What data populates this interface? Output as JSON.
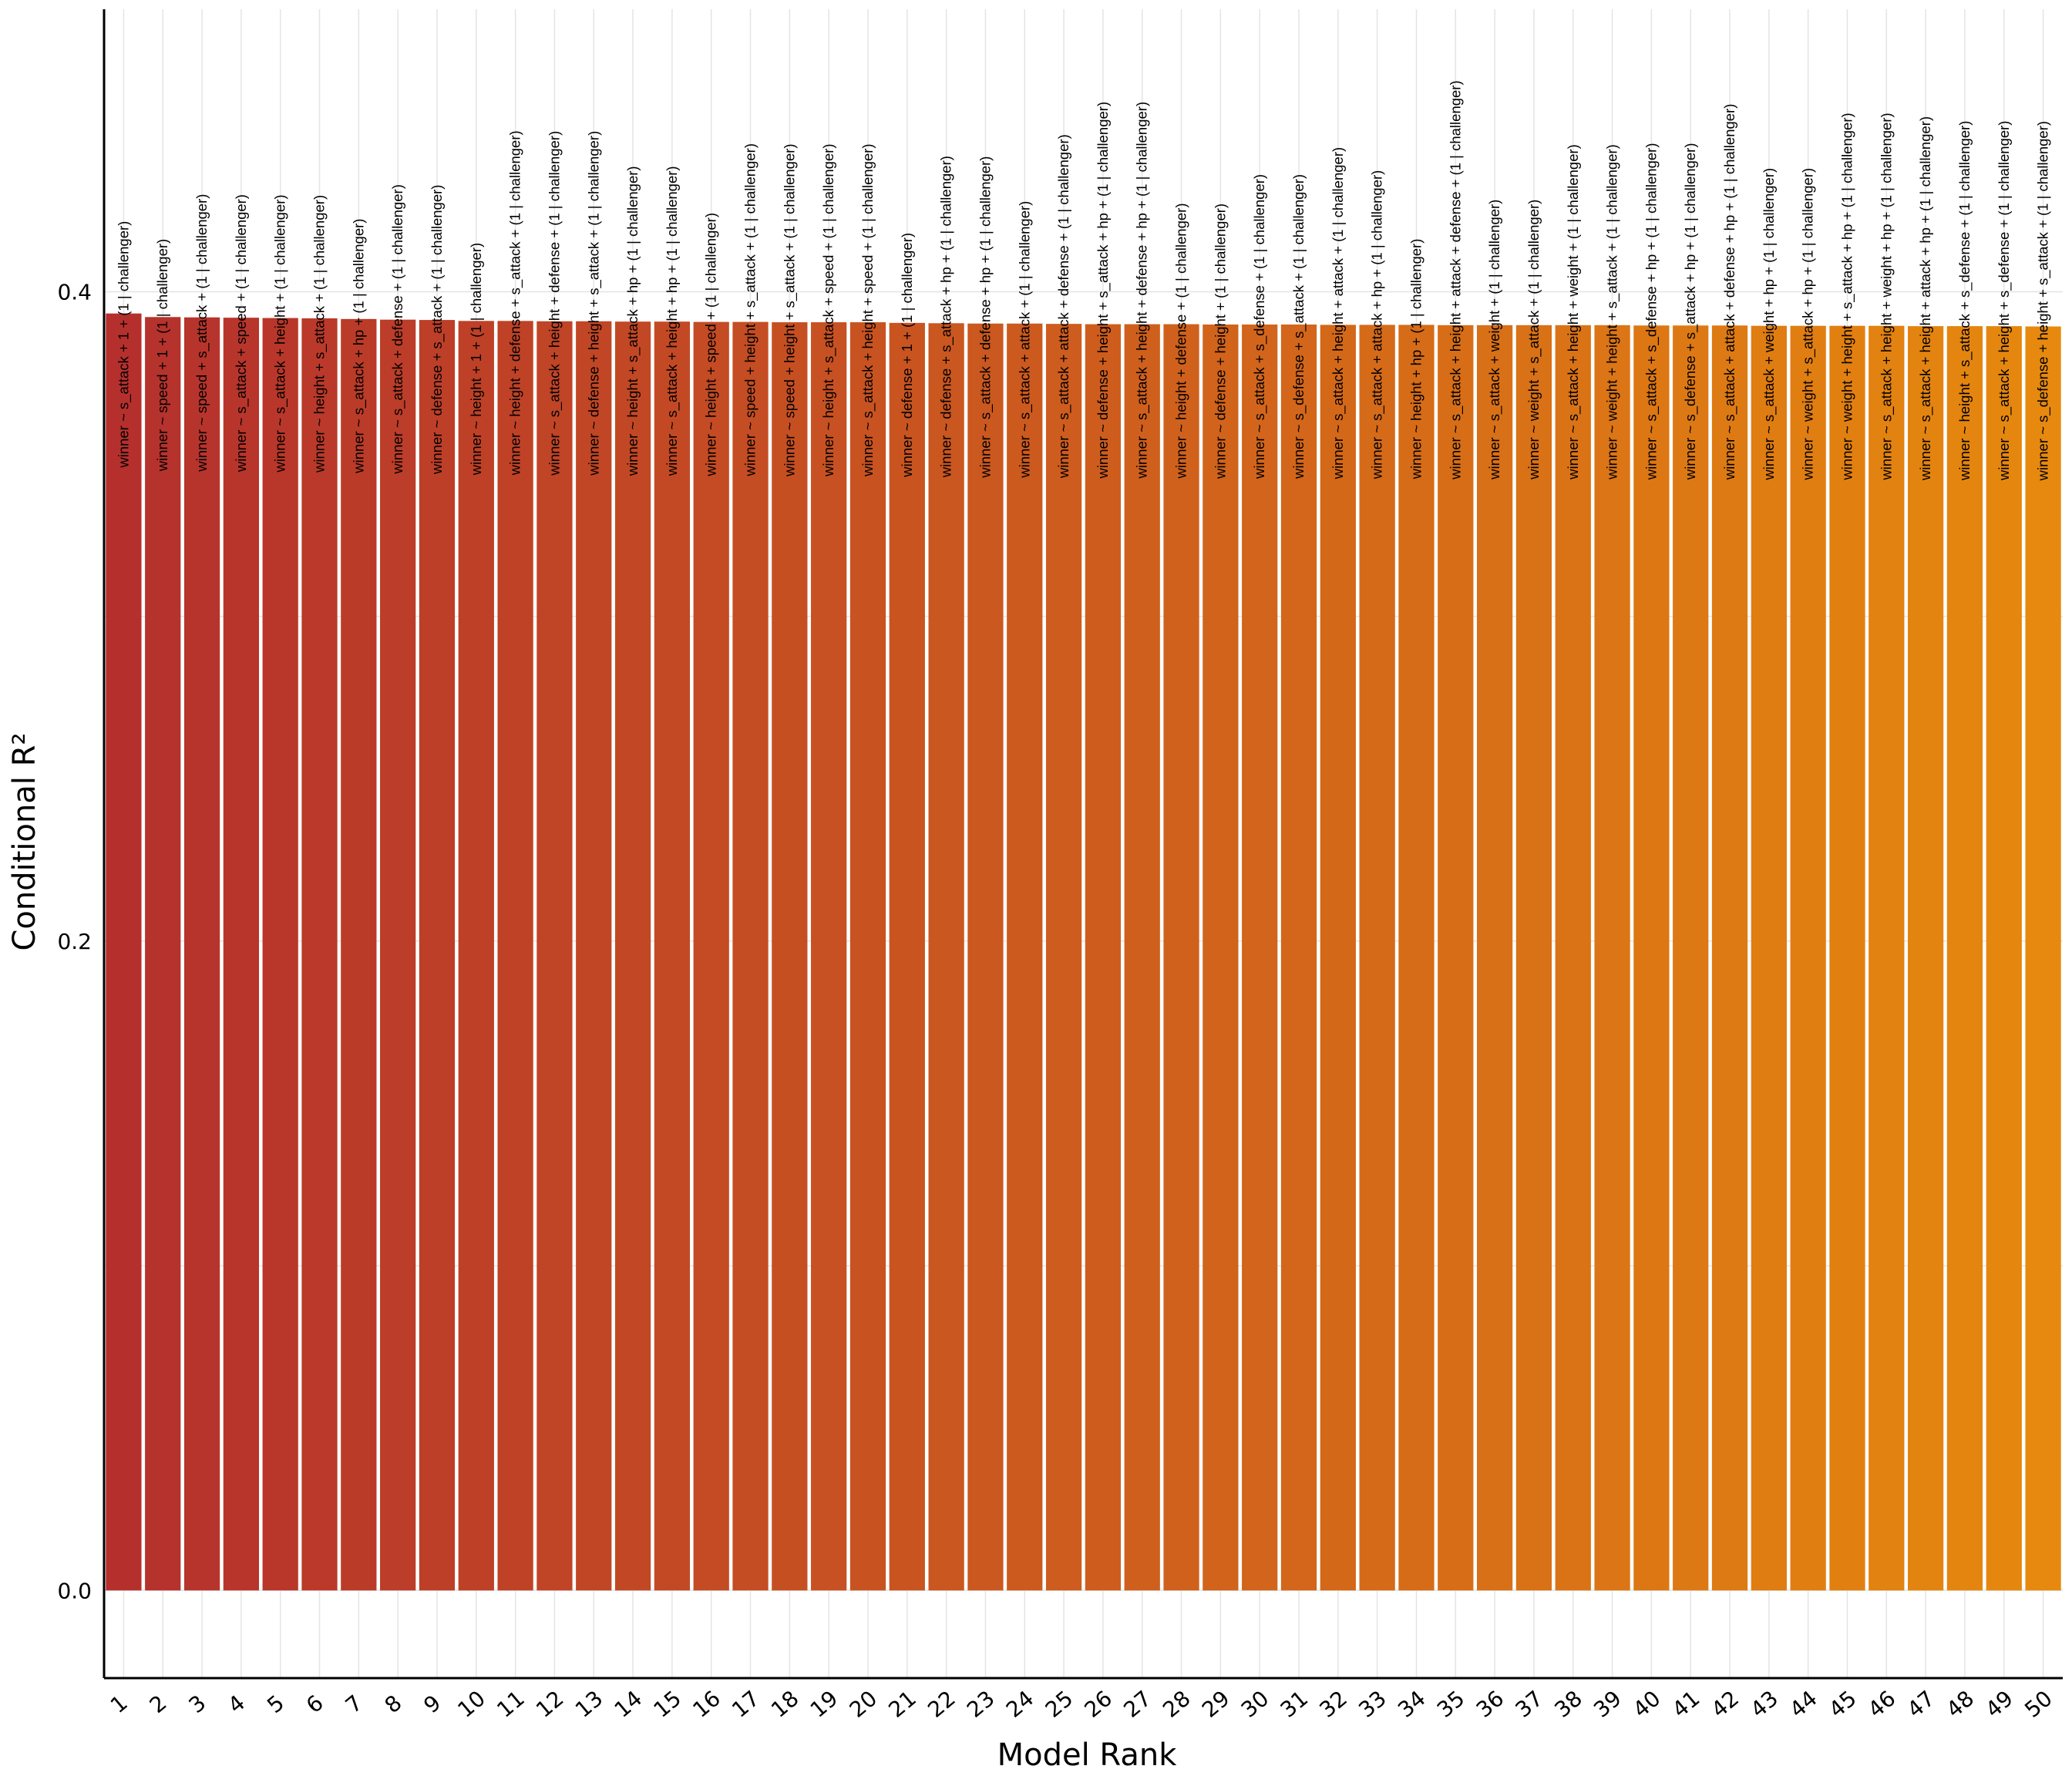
{
  "chart_data": {
    "type": "bar",
    "xlabel": "Model Rank",
    "ylabel": "Conditional R²",
    "ylim": [
      -0.027,
      0.487
    ],
    "y_ticks": [
      "0.0",
      "0.2",
      "0.4"
    ],
    "categories": [
      "1",
      "2",
      "3",
      "4",
      "5",
      "6",
      "7",
      "8",
      "9",
      "10",
      "11",
      "12",
      "13",
      "14",
      "15",
      "16",
      "17",
      "18",
      "19",
      "20",
      "21",
      "22",
      "23",
      "24",
      "25",
      "26",
      "27",
      "28",
      "29",
      "30",
      "31",
      "32",
      "33",
      "34",
      "35",
      "36",
      "37",
      "38",
      "39",
      "40",
      "41",
      "42",
      "43",
      "44",
      "45",
      "46",
      "47",
      "48",
      "49",
      "50"
    ],
    "values": [
      0.3933,
      0.3922,
      0.3921,
      0.392,
      0.3919,
      0.3918,
      0.3916,
      0.3914,
      0.3913,
      0.391,
      0.391,
      0.3909,
      0.3909,
      0.3908,
      0.3908,
      0.3907,
      0.3907,
      0.3906,
      0.3906,
      0.3906,
      0.3904,
      0.3903,
      0.3902,
      0.3902,
      0.3901,
      0.39,
      0.39,
      0.39,
      0.3899,
      0.3899,
      0.3899,
      0.3898,
      0.3898,
      0.3898,
      0.3897,
      0.3897,
      0.3897,
      0.3897,
      0.3897,
      0.3896,
      0.3896,
      0.3896,
      0.3895,
      0.3895,
      0.3895,
      0.3895,
      0.3894,
      0.3894,
      0.3894,
      0.3893
    ],
    "labels": [
      "winner ~ s_attack + 1 + (1 | challenger)",
      "winner ~ speed + 1 + (1 | challenger)",
      "winner ~ speed + s_attack + (1 | challenger)",
      "winner ~ s_attack + speed + (1 | challenger)",
      "winner ~ s_attack + height + (1 | challenger)",
      "winner ~ height + s_attack + (1 | challenger)",
      "winner ~ s_attack + hp + (1 | challenger)",
      "winner ~ s_attack + defense + (1 | challenger)",
      "winner ~ defense + s_attack + (1 | challenger)",
      "winner ~ height + 1 + (1 | challenger)",
      "winner ~ height + defense + s_attack + (1 | challenger)",
      "winner ~ s_attack + height + defense + (1 | challenger)",
      "winner ~ defense + height + s_attack + (1 | challenger)",
      "winner ~ height + s_attack + hp + (1 | challenger)",
      "winner ~ s_attack + height + hp + (1 | challenger)",
      "winner ~ height + speed + (1 | challenger)",
      "winner ~ speed + height + s_attack + (1 | challenger)",
      "winner ~ speed + height + s_attack + (1 | challenger)",
      "winner ~ height + s_attack + speed + (1 | challenger)",
      "winner ~ s_attack + height + speed + (1 | challenger)",
      "winner ~ defense + 1 + (1 | challenger)",
      "winner ~ defense + s_attack + hp + (1 | challenger)",
      "winner ~ s_attack + defense + hp + (1 | challenger)",
      "winner ~ s_attack + attack + (1 | challenger)",
      "winner ~ s_attack + attack + defense + (1 | challenger)",
      "winner ~ defense + height + s_attack + hp + (1 | challenger)",
      "winner ~ s_attack + height + defense + hp + (1 | challenger)",
      "winner ~ height + defense + (1 | challenger)",
      "winner ~ defense + height + (1 | challenger)",
      "winner ~ s_attack + s_defense + (1 | challenger)",
      "winner ~ s_defense + s_attack + (1 | challenger)",
      "winner ~ s_attack + height + attack + (1 | challenger)",
      "winner ~ s_attack + attack + hp + (1 | challenger)",
      "winner ~ height + hp + (1 | challenger)",
      "winner ~ s_attack + height + attack + defense + (1 | challenger)",
      "winner ~ s_attack + weight + (1 | challenger)",
      "winner ~ weight + s_attack + (1 | challenger)",
      "winner ~ s_attack + height + weight + (1 | challenger)",
      "winner ~ weight + height + s_attack + (1 | challenger)",
      "winner ~ s_attack + s_defense + hp + (1 | challenger)",
      "winner ~ s_defense + s_attack + hp + (1 | challenger)",
      "winner ~ s_attack + attack + defense + hp + (1 | challenger)",
      "winner ~ s_attack + weight + hp + (1 | challenger)",
      "winner ~ weight + s_attack + hp + (1 | challenger)",
      "winner ~ weight + height + s_attack + hp + (1 | challenger)",
      "winner ~ s_attack + height + weight + hp + (1 | challenger)",
      "winner ~ s_attack + height + attack + hp + (1 | challenger)",
      "winner ~ height + s_attack + s_defense + (1 | challenger)",
      "winner ~ s_attack + height + s_defense + (1 | challenger)",
      "winner ~ s_defense + height + s_attack + (1 | challenger)"
    ],
    "grid": true,
    "legend": "none",
    "color_start": "#b5302d",
    "color_end": "#e6890e"
  }
}
